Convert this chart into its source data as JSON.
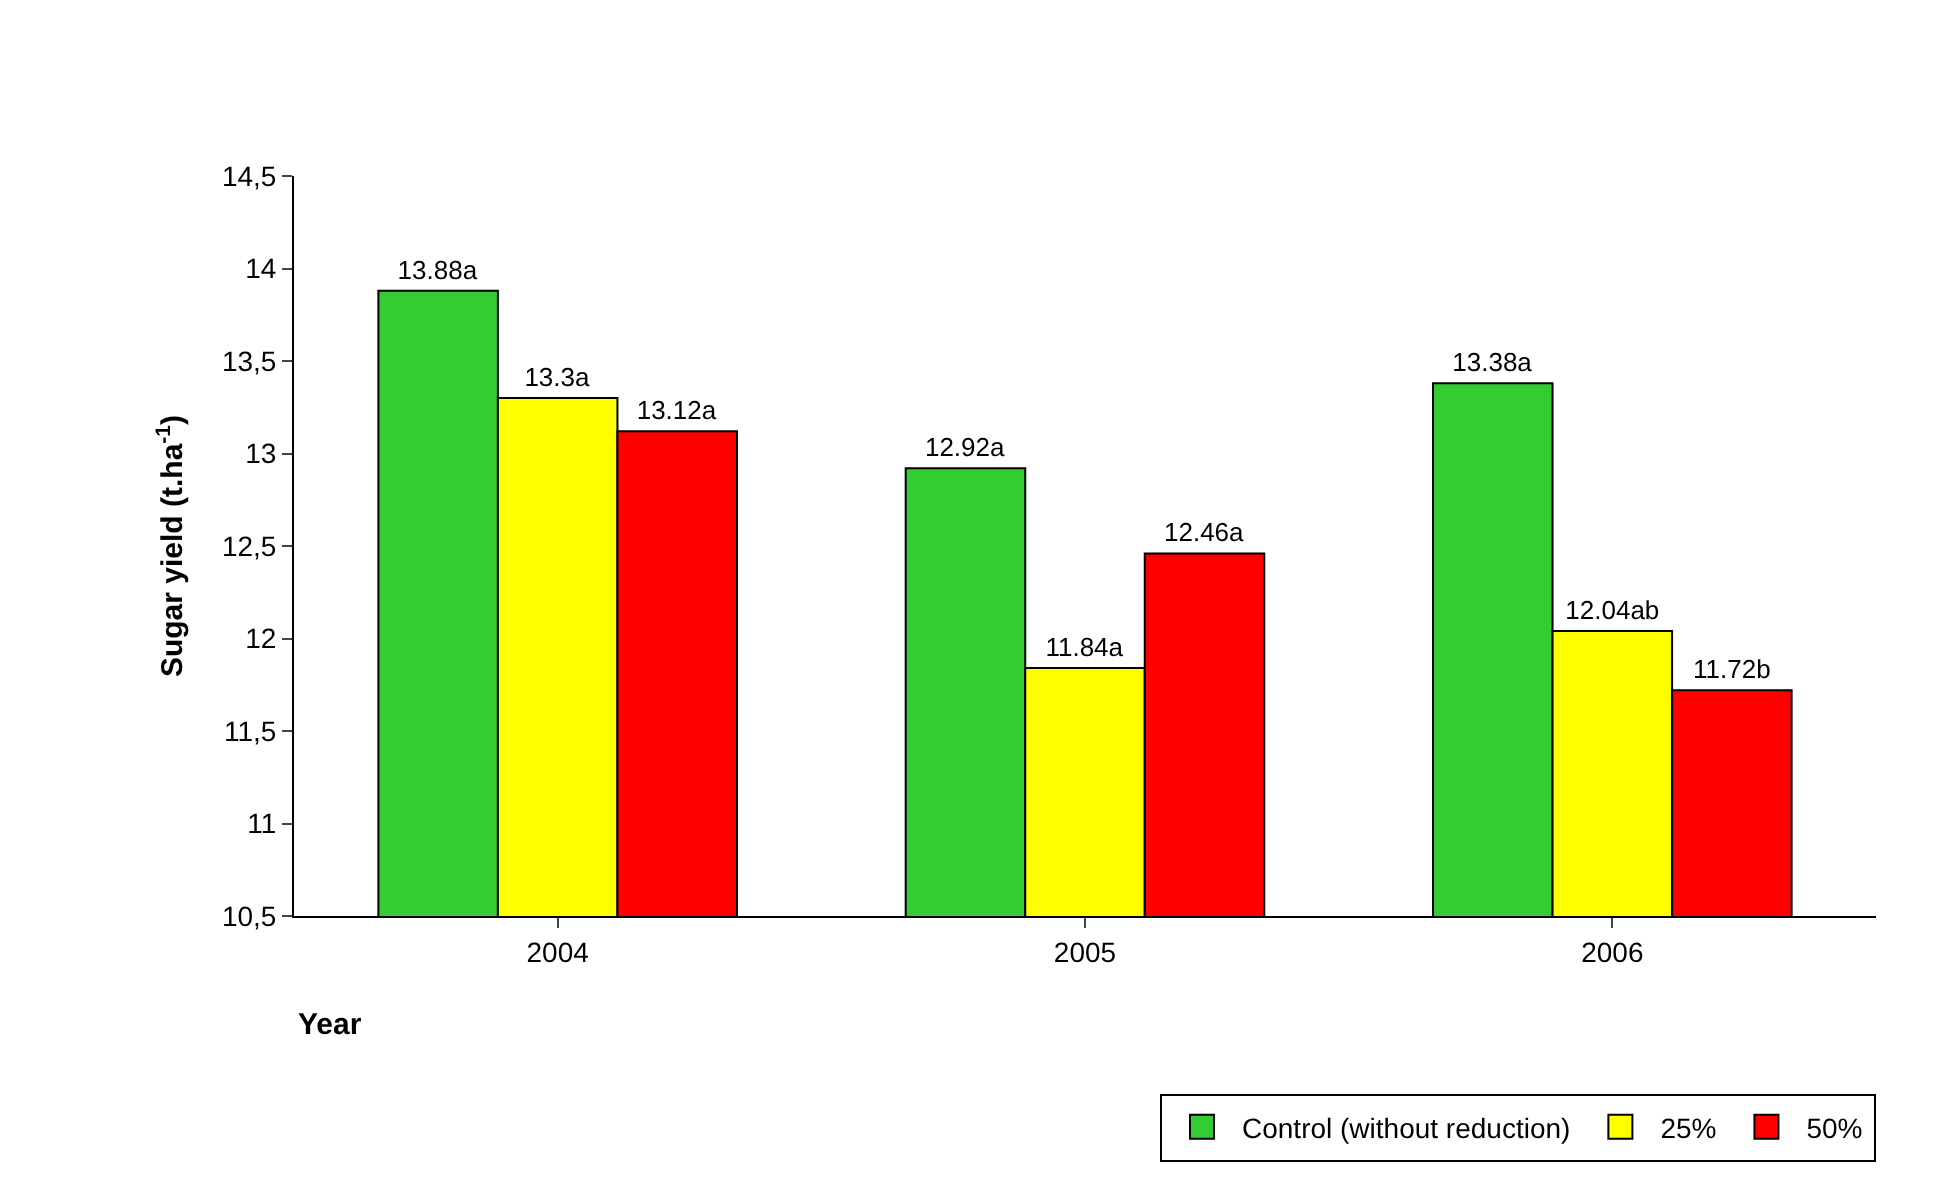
{
  "chart_data": {
    "type": "bar",
    "xlabel": "Year",
    "ylabel": "Sugar yield (t.ha$^{-1}$)",
    "categories": [
      "2004",
      "2005",
      "2006"
    ],
    "series": [
      {
        "name": "Control (without reduction)",
        "color": "#33cc33",
        "values": [
          13.88,
          12.92,
          13.38
        ],
        "value_labels": [
          "13.88a",
          "12.92a",
          "13.38a"
        ]
      },
      {
        "name": "25%",
        "color": "#ffff00",
        "values": [
          13.3,
          11.84,
          12.04
        ],
        "value_labels": [
          "13.3a",
          "11.84a",
          "12.04ab"
        ]
      },
      {
        "name": "50%",
        "color": "#ff0000",
        "values": [
          13.12,
          12.46,
          11.72
        ],
        "value_labels": [
          "13.12a",
          "12.46a",
          "11.72b"
        ]
      }
    ],
    "ylim": [
      10.5,
      14.5
    ],
    "yticks": [
      {
        "value": 10.5,
        "label": "10,5"
      },
      11,
      {
        "value": 11.5,
        "label": "11,5"
      },
      12,
      {
        "value": 12.5,
        "label": "12,5"
      },
      13,
      {
        "value": 13.5,
        "label": "13,5"
      },
      14,
      {
        "value": 14.5,
        "label": "14,5"
      }
    ],
    "grid": false,
    "legend": "bottom right"
  }
}
